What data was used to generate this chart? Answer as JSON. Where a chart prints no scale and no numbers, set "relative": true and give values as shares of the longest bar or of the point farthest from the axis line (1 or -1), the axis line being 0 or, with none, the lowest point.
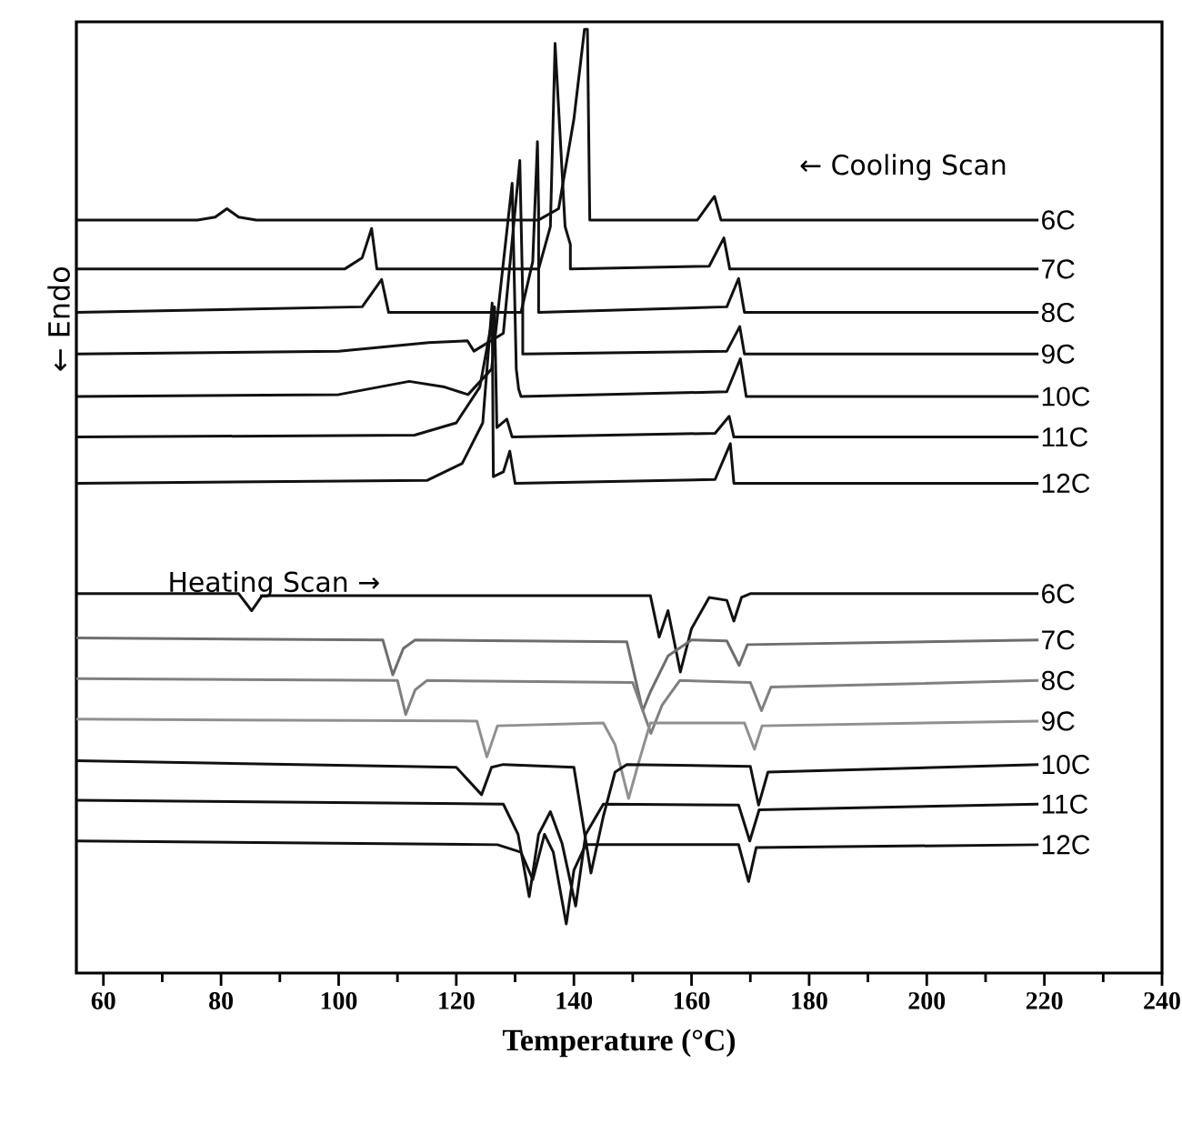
{
  "chart_data": {
    "type": "line",
    "relative": true,
    "xlabel": "Temperature (°C)",
    "ylabel": "← Endo",
    "xlim": [
      55.4,
      240
    ],
    "xticks": [
      60,
      80,
      100,
      120,
      140,
      160,
      180,
      200,
      220,
      240
    ],
    "annotations": [
      "← Cooling Scan",
      "Heating Scan →"
    ],
    "series": [
      {
        "name": "6C",
        "color": "#111111",
        "x": [
          55.4,
          76,
          79,
          81,
          83,
          86,
          134,
          137.4,
          140,
          141.8,
          142.3,
          142.7,
          161,
          163.9,
          165,
          219
        ],
        "values": [
          0.798,
          0.798,
          0.801,
          0.81,
          0.801,
          0.798,
          0.798,
          0.81,
          0.905,
          1.0,
          1.0,
          0.798,
          0.798,
          0.823,
          0.798,
          0.798
        ]
      },
      {
        "name": "7C",
        "color": "#111111",
        "x": [
          55.4,
          101,
          104,
          105.6,
          106.5,
          134,
          136,
          136.8,
          138.5,
          139.4,
          139.4,
          163,
          165.5,
          166.5,
          219
        ],
        "values": [
          0.746,
          0.746,
          0.758,
          0.789,
          0.746,
          0.746,
          0.791,
          0.985,
          0.791,
          0.772,
          0.746,
          0.749,
          0.779,
          0.746,
          0.746
        ]
      },
      {
        "name": "8C",
        "color": "#111111",
        "x": [
          55.4,
          104,
          107.3,
          108.5,
          131,
          133,
          133.8,
          134,
          134,
          166,
          168,
          169,
          219
        ],
        "values": [
          0.7,
          0.706,
          0.735,
          0.7,
          0.7,
          0.754,
          0.881,
          0.81,
          0.7,
          0.706,
          0.736,
          0.7,
          0.7
        ]
      },
      {
        "name": "9C",
        "color": "#111111",
        "x": [
          55.4,
          100,
          115.3,
          121.9,
          123,
          128,
          130.8,
          131.3,
          131.3,
          166,
          168.2,
          169,
          219
        ],
        "values": [
          0.656,
          0.659,
          0.668,
          0.67,
          0.659,
          0.678,
          0.861,
          0.716,
          0.656,
          0.659,
          0.685,
          0.656,
          0.656
        ]
      },
      {
        "name": "10C",
        "color": "#111111",
        "x": [
          55.4,
          100,
          112,
          118,
          122,
          126,
          129.5,
          130.2,
          130.6,
          131,
          166,
          168.3,
          169.3,
          219
        ],
        "values": [
          0.611,
          0.613,
          0.627,
          0.621,
          0.613,
          0.64,
          0.837,
          0.64,
          0.619,
          0.611,
          0.616,
          0.651,
          0.611,
          0.611
        ]
      },
      {
        "name": "11C",
        "color": "#111111",
        "x": [
          55.4,
          112.9,
          120,
          124,
          126.5,
          126.9,
          128.6,
          129.5,
          164,
          166.4,
          167.2,
          219
        ],
        "values": [
          0.568,
          0.57,
          0.583,
          0.621,
          0.706,
          0.578,
          0.587,
          0.568,
          0.572,
          0.59,
          0.568,
          0.568
        ]
      },
      {
        "name": "12C",
        "color": "#111111",
        "x": [
          55.4,
          115,
          121,
          124.5,
          126.1,
          126.3,
          128,
          129.1,
          130,
          164,
          166.6,
          167.2,
          219
        ],
        "values": [
          0.519,
          0.522,
          0.54,
          0.583,
          0.71,
          0.526,
          0.531,
          0.553,
          0.519,
          0.523,
          0.561,
          0.519,
          0.519
        ]
      },
      {
        "name": "6C",
        "color": "#111111",
        "x": [
          55.4,
          83,
          85.2,
          87,
          153,
          154.5,
          156,
          158.1,
          160,
          163,
          166,
          167.2,
          168.5,
          170,
          219
        ],
        "values": [
          0.402,
          0.402,
          0.384,
          0.4,
          0.4,
          0.356,
          0.384,
          0.319,
          0.365,
          0.398,
          0.395,
          0.373,
          0.398,
          0.402,
          0.402
        ]
      },
      {
        "name": "7C",
        "color": "#6e6e6e",
        "x": [
          55.4,
          107.5,
          109.2,
          111,
          113,
          149,
          151.7,
          153,
          156,
          160,
          166,
          168.1,
          169.5,
          219
        ],
        "values": [
          0.355,
          0.353,
          0.316,
          0.344,
          0.353,
          0.351,
          0.278,
          0.298,
          0.336,
          0.353,
          0.352,
          0.326,
          0.348,
          0.353
        ]
      },
      {
        "name": "8C",
        "color": "#808080",
        "x": [
          55.4,
          110,
          111.4,
          113,
          115,
          150,
          153.1,
          155,
          158,
          170,
          171.9,
          173.5,
          219
        ],
        "values": [
          0.312,
          0.31,
          0.274,
          0.3,
          0.31,
          0.308,
          0.254,
          0.284,
          0.31,
          0.308,
          0.278,
          0.303,
          0.31
        ]
      },
      {
        "name": "9C",
        "color": "#909090",
        "x": [
          55.4,
          123.5,
          125.2,
          127,
          145,
          147,
          149.3,
          151,
          153,
          169,
          170.7,
          172,
          219
        ],
        "values": [
          0.269,
          0.267,
          0.229,
          0.262,
          0.265,
          0.242,
          0.185,
          0.223,
          0.265,
          0.265,
          0.237,
          0.262,
          0.267
        ]
      },
      {
        "name": "10C",
        "color": "#111111",
        "x": [
          55.4,
          120,
          124.3,
          126,
          128,
          140,
          142.9,
          145,
          147,
          149,
          170,
          171.4,
          173,
          219
        ],
        "values": [
          0.225,
          0.218,
          0.189,
          0.218,
          0.221,
          0.218,
          0.106,
          0.166,
          0.213,
          0.221,
          0.219,
          0.178,
          0.213,
          0.221
        ]
      },
      {
        "name": "11C",
        "color": "#111111",
        "x": [
          55.4,
          128,
          130.5,
          132.4,
          134,
          136,
          138,
          140.3,
          142,
          145,
          168,
          169.9,
          171.5,
          219
        ],
        "values": [
          0.183,
          0.179,
          0.147,
          0.081,
          0.147,
          0.171,
          0.137,
          0.071,
          0.147,
          0.179,
          0.178,
          0.14,
          0.173,
          0.179
        ]
      },
      {
        "name": "12C",
        "color": "#111111",
        "x": [
          55.4,
          127,
          131,
          133,
          135,
          136.5,
          138.7,
          140,
          142,
          168,
          169.7,
          171,
          219
        ],
        "values": [
          0.14,
          0.136,
          0.128,
          0.099,
          0.147,
          0.128,
          0.052,
          0.109,
          0.136,
          0.136,
          0.097,
          0.133,
          0.136
        ]
      }
    ]
  }
}
